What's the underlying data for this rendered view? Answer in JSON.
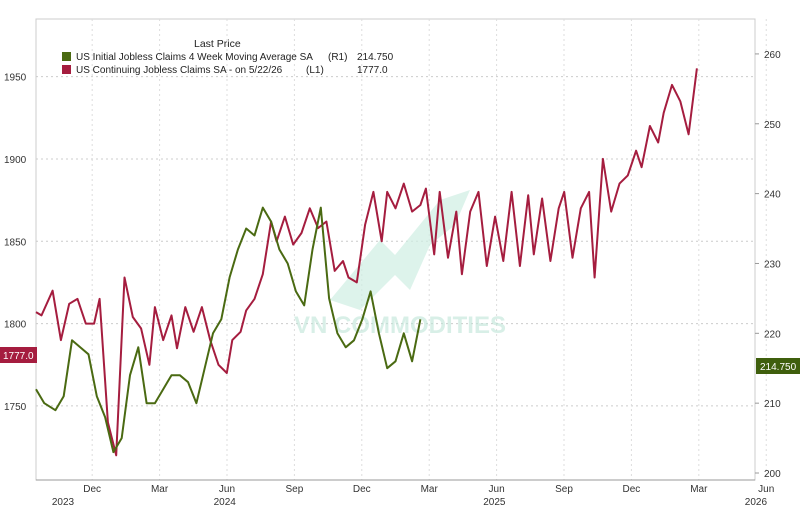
{
  "chart_data": {
    "type": "line",
    "legend": {
      "header": "Last Price",
      "placement": "top-left",
      "entries": [
        {
          "label": "US Initial Jobless Claims 4 Week Moving Average SA",
          "axis_tag": "(R1)",
          "value": "214.750",
          "color": "#4a6a12"
        },
        {
          "label": "US Continuing Jobless Claims SA  -  on 5/22/26",
          "axis_tag": "(L1)",
          "value": "1777.0",
          "color": "#a51d3f"
        }
      ]
    },
    "left_axis": {
      "ticks": [
        "1750",
        "1800",
        "1850",
        "1900",
        "1950"
      ],
      "range": [
        1705,
        1985
      ]
    },
    "right_axis": {
      "ticks": [
        "200",
        "210",
        "220",
        "230",
        "240",
        "250",
        "260"
      ],
      "range": [
        199,
        265
      ]
    },
    "x_axis": {
      "months": [
        "Dec",
        "Mar",
        "Jun",
        "Sep",
        "Dec",
        "Mar",
        "Jun",
        "Sep",
        "Dec",
        "Mar",
        "Jun"
      ],
      "years": [
        "2023",
        "2024",
        "2025",
        "2026"
      ],
      "start": "2023-10",
      "end": "2026-06"
    },
    "last_value_tags": {
      "left": "1777.0",
      "right": "214.750"
    },
    "series": [
      {
        "name": "US Continuing Jobless Claims SA",
        "axis": "left",
        "color": "#a51d3f",
        "points": [
          [
            2023.78,
            1807
          ],
          [
            2023.8,
            1805
          ],
          [
            2023.84,
            1820
          ],
          [
            2023.87,
            1790
          ],
          [
            2023.9,
            1812
          ],
          [
            2023.93,
            1815
          ],
          [
            2023.96,
            1800
          ],
          [
            2023.99,
            1800
          ],
          [
            2024.01,
            1815
          ],
          [
            2024.04,
            1740
          ],
          [
            2024.07,
            1720
          ],
          [
            2024.1,
            1828
          ],
          [
            2024.13,
            1804
          ],
          [
            2024.16,
            1797
          ],
          [
            2024.19,
            1775
          ],
          [
            2024.21,
            1810
          ],
          [
            2024.24,
            1790
          ],
          [
            2024.27,
            1805
          ],
          [
            2024.29,
            1785
          ],
          [
            2024.32,
            1810
          ],
          [
            2024.35,
            1795
          ],
          [
            2024.38,
            1810
          ],
          [
            2024.41,
            1790
          ],
          [
            2024.44,
            1775
          ],
          [
            2024.47,
            1770
          ],
          [
            2024.49,
            1790
          ],
          [
            2024.52,
            1795
          ],
          [
            2024.54,
            1808
          ],
          [
            2024.57,
            1815
          ],
          [
            2024.6,
            1830
          ],
          [
            2024.63,
            1862
          ],
          [
            2024.65,
            1850
          ],
          [
            2024.68,
            1865
          ],
          [
            2024.71,
            1848
          ],
          [
            2024.74,
            1855
          ],
          [
            2024.77,
            1870
          ],
          [
            2024.8,
            1858
          ],
          [
            2024.83,
            1862
          ],
          [
            2024.86,
            1832
          ],
          [
            2024.89,
            1838
          ],
          [
            2024.91,
            1828
          ],
          [
            2024.94,
            1825
          ],
          [
            2024.97,
            1860
          ],
          [
            2025.0,
            1880
          ],
          [
            2025.03,
            1850
          ],
          [
            2025.05,
            1880
          ],
          [
            2025.08,
            1870
          ],
          [
            2025.11,
            1885
          ],
          [
            2025.14,
            1868
          ],
          [
            2025.17,
            1872
          ],
          [
            2025.19,
            1882
          ],
          [
            2025.22,
            1842
          ],
          [
            2025.24,
            1880
          ],
          [
            2025.27,
            1840
          ],
          [
            2025.3,
            1868
          ],
          [
            2025.32,
            1830
          ],
          [
            2025.35,
            1868
          ],
          [
            2025.38,
            1880
          ],
          [
            2025.41,
            1835
          ],
          [
            2025.44,
            1865
          ],
          [
            2025.47,
            1838
          ],
          [
            2025.5,
            1880
          ],
          [
            2025.53,
            1835
          ],
          [
            2025.56,
            1878
          ],
          [
            2025.58,
            1842
          ],
          [
            2025.61,
            1876
          ],
          [
            2025.64,
            1838
          ],
          [
            2025.67,
            1870
          ],
          [
            2025.69,
            1880
          ],
          [
            2025.72,
            1840
          ],
          [
            2025.75,
            1870
          ],
          [
            2025.78,
            1880
          ],
          [
            2025.8,
            1828
          ],
          [
            2025.83,
            1900
          ],
          [
            2025.86,
            1868
          ],
          [
            2025.89,
            1885
          ],
          [
            2025.92,
            1890
          ],
          [
            2025.95,
            1905
          ],
          [
            2025.97,
            1895
          ],
          [
            2026.0,
            1920
          ],
          [
            2026.03,
            1910
          ],
          [
            2026.05,
            1928
          ],
          [
            2026.08,
            1945
          ],
          [
            2026.11,
            1935
          ],
          [
            2026.14,
            1915
          ],
          [
            2026.17,
            1955
          ]
        ]
      },
      {
        "name": "US Initial Jobless Claims 4 Week Moving Average SA",
        "axis": "right",
        "color": "#4a6a12",
        "points": [
          [
            2023.78,
            212
          ],
          [
            2023.81,
            210
          ],
          [
            2023.85,
            209
          ],
          [
            2023.88,
            211
          ],
          [
            2023.91,
            219
          ],
          [
            2023.94,
            218
          ],
          [
            2023.97,
            217
          ],
          [
            2024.0,
            211
          ],
          [
            2024.03,
            208
          ],
          [
            2024.06,
            203
          ],
          [
            2024.09,
            205
          ],
          [
            2024.12,
            214
          ],
          [
            2024.15,
            218
          ],
          [
            2024.18,
            210
          ],
          [
            2024.21,
            210
          ],
          [
            2024.24,
            212
          ],
          [
            2024.27,
            214
          ],
          [
            2024.3,
            214
          ],
          [
            2024.33,
            213
          ],
          [
            2024.36,
            210
          ],
          [
            2024.39,
            215
          ],
          [
            2024.42,
            220
          ],
          [
            2024.45,
            222
          ],
          [
            2024.48,
            228
          ],
          [
            2024.51,
            232
          ],
          [
            2024.54,
            235
          ],
          [
            2024.57,
            234
          ],
          [
            2024.6,
            238
          ],
          [
            2024.63,
            236
          ],
          [
            2024.66,
            232
          ],
          [
            2024.69,
            230
          ],
          [
            2024.72,
            226
          ],
          [
            2024.75,
            224
          ],
          [
            2024.78,
            232
          ],
          [
            2024.81,
            238
          ],
          [
            2024.84,
            225
          ],
          [
            2024.87,
            220
          ],
          [
            2024.9,
            218
          ],
          [
            2024.93,
            219
          ],
          [
            2024.96,
            222
          ],
          [
            2024.99,
            226
          ],
          [
            2025.02,
            220
          ],
          [
            2025.05,
            215
          ],
          [
            2025.08,
            216
          ],
          [
            2025.11,
            220
          ],
          [
            2025.14,
            216
          ],
          [
            2025.17,
            222
          ]
        ]
      }
    ]
  },
  "watermark": "VN COMMODITIES"
}
